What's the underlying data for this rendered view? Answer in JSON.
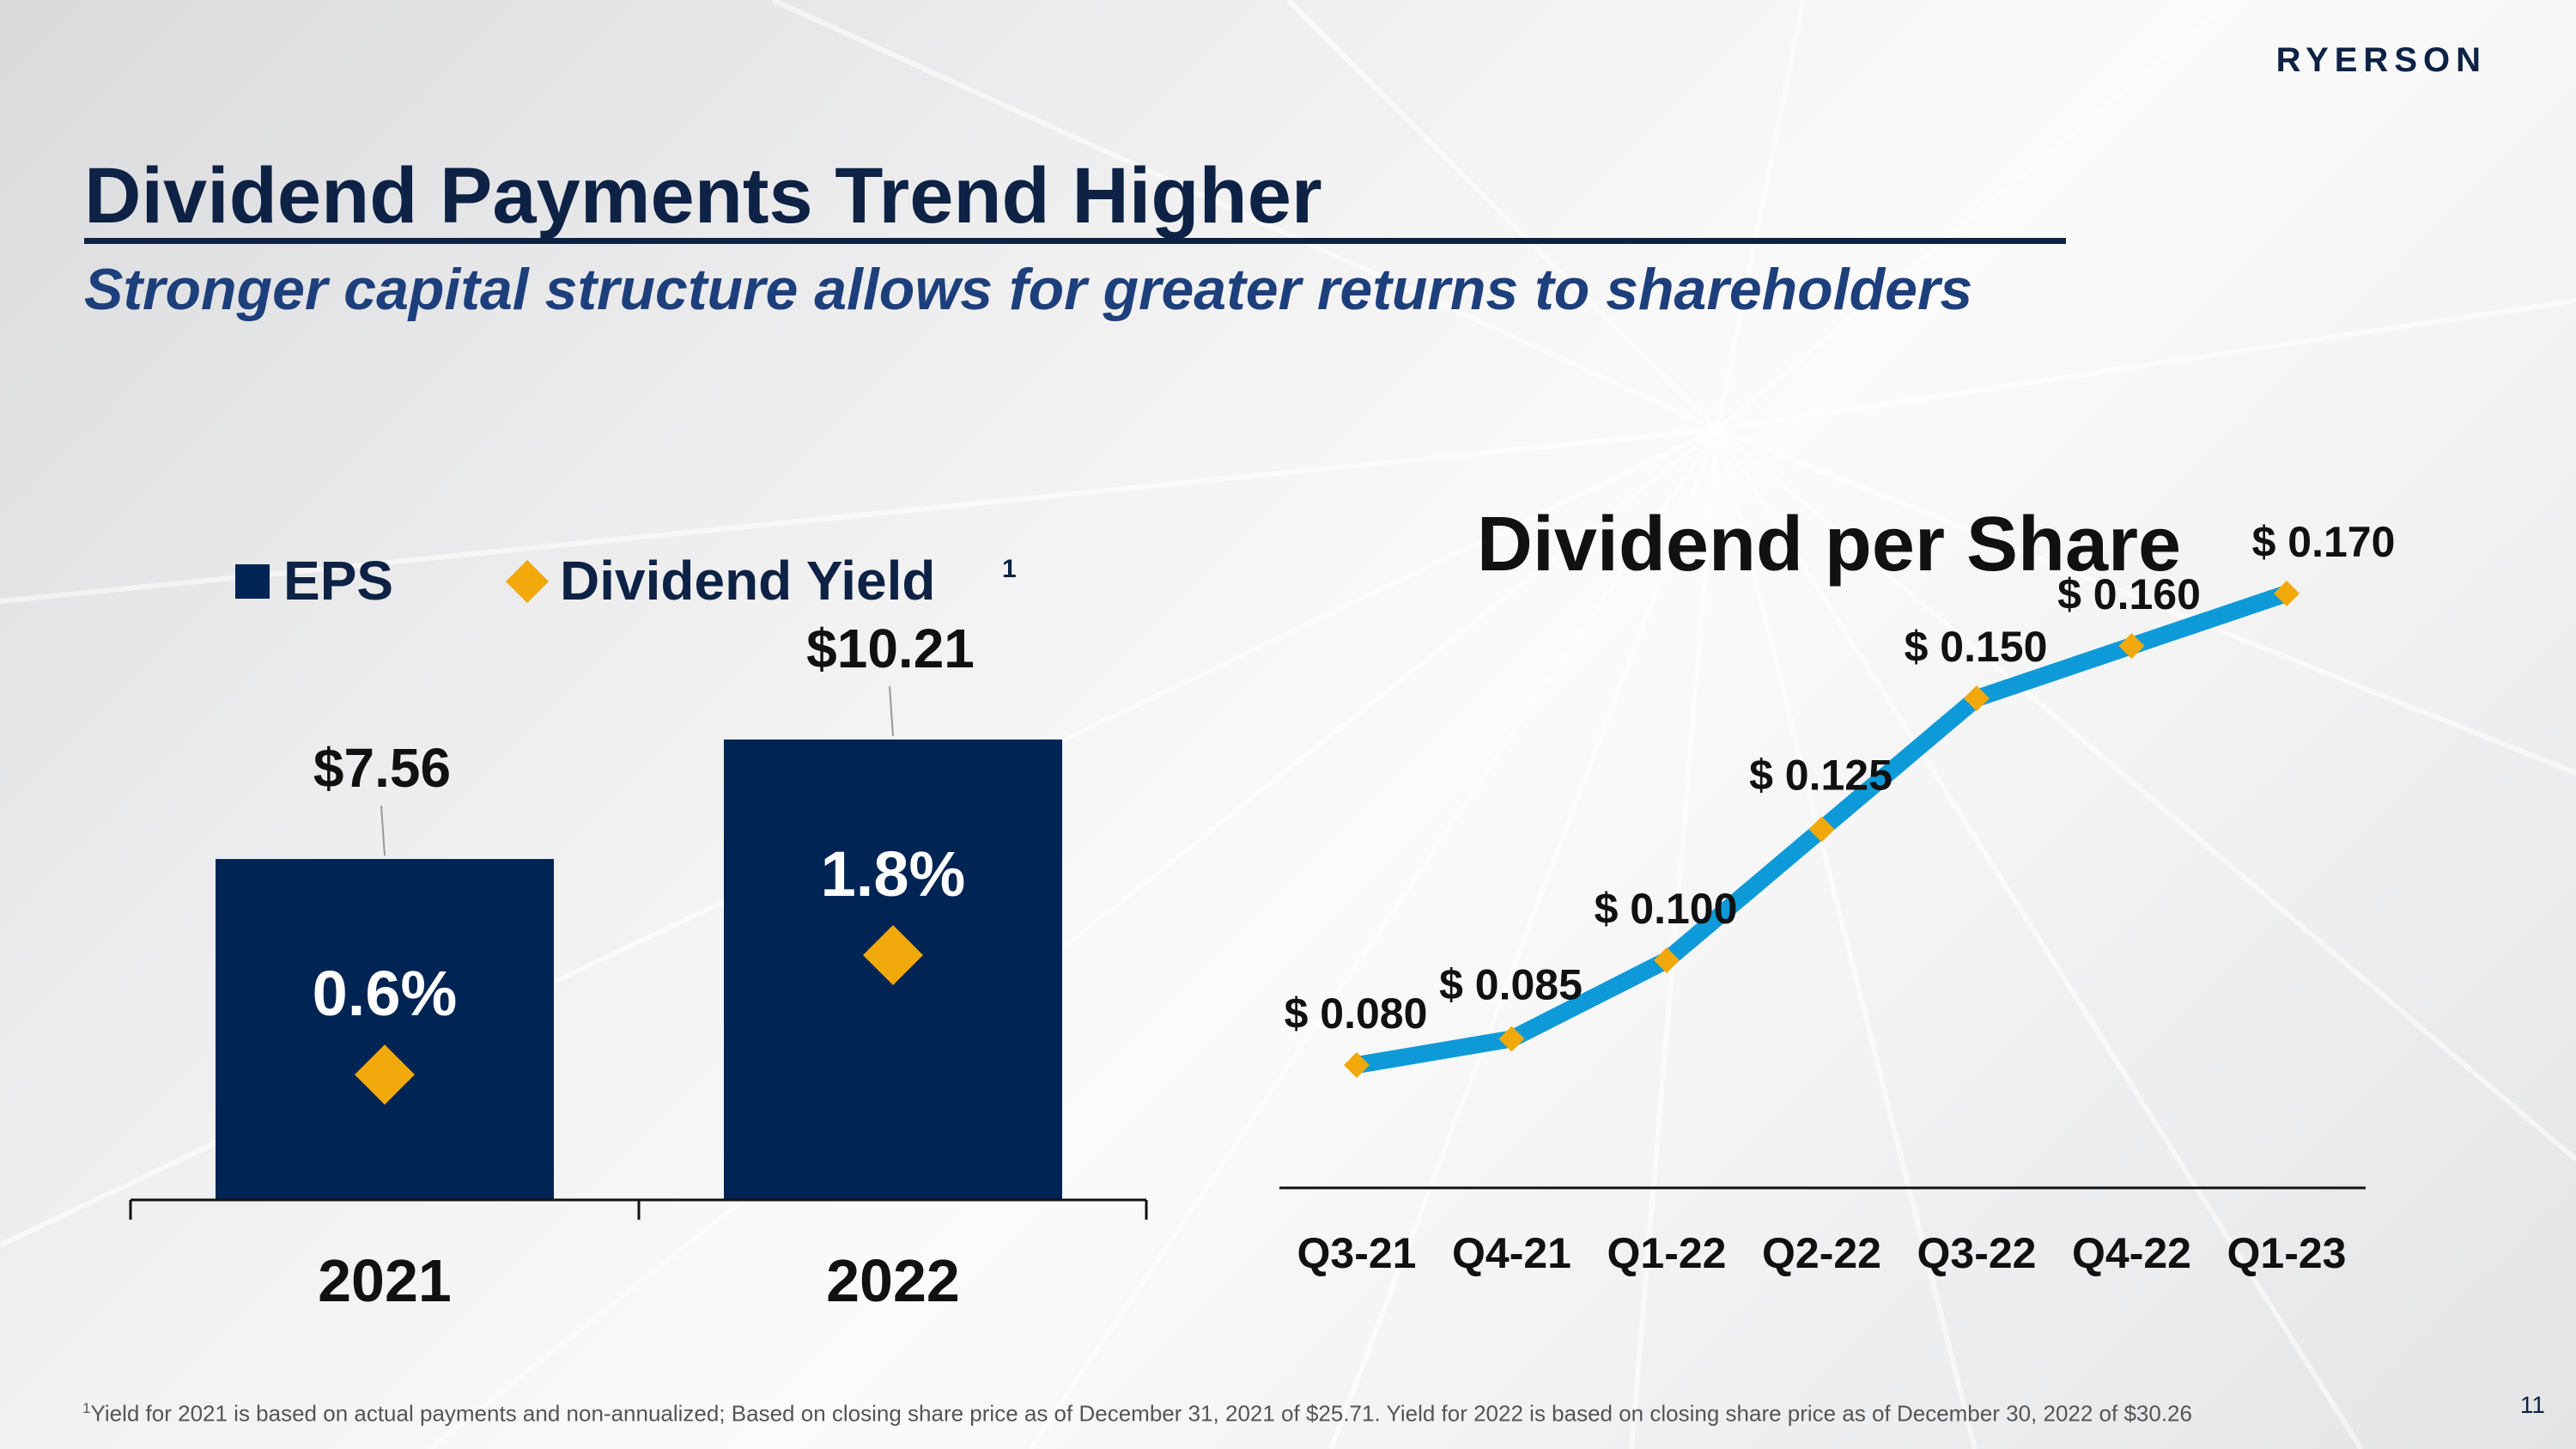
{
  "header": {
    "logo": "RYERSON",
    "title": "Dividend Payments Trend Higher",
    "subtitle": "Stronger capital structure allows for greater returns to shareholders"
  },
  "colors": {
    "navy": "#0d2245",
    "bar": "#002454",
    "diamond": "#f0a80a",
    "line": "#0e9ad9"
  },
  "icons": {
    "diamond": "diamond-icon",
    "legend_square": "square-swatch-icon"
  },
  "chart_data": [
    {
      "type": "bar",
      "legend": [
        "EPS",
        "Dividend Yield"
      ],
      "legend_superscript": "1",
      "categories": [
        "2021",
        "2022"
      ],
      "series": [
        {
          "name": "EPS",
          "values": [
            7.56,
            10.21
          ],
          "labels": [
            "$7.56",
            "$10.21"
          ]
        },
        {
          "name": "Dividend Yield",
          "values": [
            0.6,
            1.8
          ],
          "labels": [
            "0.6%",
            "1.8%"
          ]
        }
      ],
      "ylim": [
        0,
        12
      ]
    },
    {
      "type": "line",
      "title": "Dividend per Share",
      "categories": [
        "Q3-21",
        "Q4-21",
        "Q1-22",
        "Q2-22",
        "Q3-22",
        "Q4-22",
        "Q1-23"
      ],
      "values": [
        0.08,
        0.085,
        0.1,
        0.125,
        0.15,
        0.16,
        0.17
      ],
      "labels": [
        "$ 0.080",
        "$ 0.085",
        "$ 0.100",
        "$ 0.125",
        "$ 0.150",
        "$ 0.160",
        "$ 0.170"
      ],
      "ylim": [
        0.04,
        0.2
      ]
    }
  ],
  "footnote": {
    "marker": "1",
    "text": "Yield for 2021 is based on actual payments and non-annualized; Based on closing share price as of December 31, 2021 of $25.71. Yield for 2022 is based on closing share price as of December 30, 2022 of $30.26"
  },
  "page_number": "11"
}
